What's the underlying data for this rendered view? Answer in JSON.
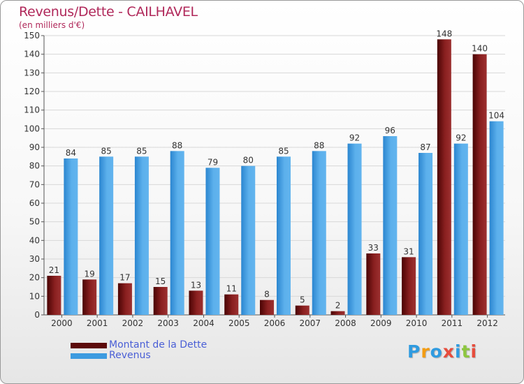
{
  "header": {
    "title": "Revenus/Dette - CAILHAVEL",
    "subtitle": "(en milliers d'€)"
  },
  "logo": {
    "text": "Proxiti",
    "letters": [
      "P",
      "r",
      "o",
      "x",
      "i",
      "t",
      "i"
    ],
    "colors": [
      "#2f9be0",
      "#f39c12",
      "#2f9be0",
      "#e74c3c",
      "#2f9be0",
      "#8dc63f",
      "#e74c3c"
    ]
  },
  "legend": [
    {
      "label": "Montant de la Dette",
      "color": "#5c0a0a"
    },
    {
      "label": "Revenus",
      "color": "#3d9be0"
    }
  ],
  "chart_data": {
    "type": "bar",
    "title": "Revenus/Dette - CAILHAVEL",
    "subtitle": "(en milliers d'€)",
    "categories": [
      "2000",
      "2001",
      "2002",
      "2003",
      "2004",
      "2005",
      "2006",
      "2007",
      "2008",
      "2009",
      "2010",
      "2011",
      "2012"
    ],
    "series": [
      {
        "name": "Montant de la Dette",
        "color": "#7a1a1a",
        "values": [
          21,
          19,
          17,
          15,
          13,
          11,
          8,
          5,
          2,
          33,
          31,
          148,
          140
        ]
      },
      {
        "name": "Revenus",
        "color": "#4ea6e6",
        "values": [
          84,
          85,
          85,
          88,
          79,
          80,
          85,
          88,
          92,
          96,
          87,
          92,
          104
        ]
      }
    ],
    "ylim": [
      0,
      150
    ],
    "yticks": [
      0,
      10,
      20,
      30,
      40,
      50,
      60,
      70,
      80,
      90,
      100,
      110,
      120,
      130,
      140,
      150
    ],
    "grid": true,
    "legend_position": "bottom-left"
  }
}
